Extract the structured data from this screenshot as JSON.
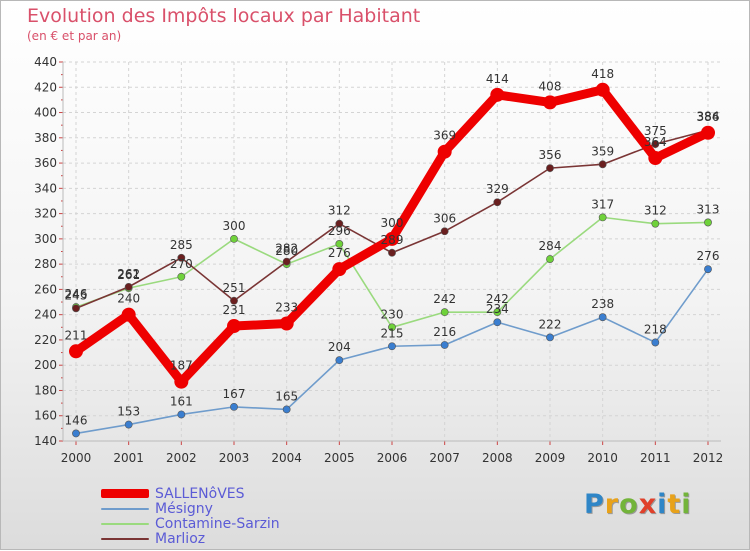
{
  "header": {
    "title": "Evolution des Impôts locaux par Habitant",
    "subtitle": "(en € et par an)"
  },
  "logo": {
    "text": "Proxiti",
    "letter_colors": [
      "#2f86c7",
      "#e8a21a",
      "#73b43a",
      "#e0402a",
      "#2f86c7",
      "#e8a21a",
      "#73b43a"
    ]
  },
  "chart_data": {
    "type": "line",
    "x": [
      "2000",
      "2001",
      "2002",
      "2003",
      "2004",
      "2005",
      "2006",
      "2007",
      "2008",
      "2009",
      "2010",
      "2011",
      "2012"
    ],
    "ylim": [
      140,
      440
    ],
    "yticks": [
      140,
      160,
      180,
      200,
      220,
      240,
      260,
      280,
      300,
      320,
      340,
      360,
      380,
      400,
      420,
      440
    ],
    "grid": true,
    "legend_position": "bottom-left",
    "series": [
      {
        "name": "SALLENôVES",
        "color": "#ee0000",
        "marker_color": "#ee0000",
        "emphasis": "thick",
        "values": [
          211,
          240,
          187,
          231,
          233,
          276,
          300,
          369,
          414,
          408,
          418,
          364,
          384
        ]
      },
      {
        "name": "Mésigny",
        "color": "#6f9ccc",
        "marker_color": "#3a7ed0",
        "emphasis": "thin",
        "values": [
          146,
          153,
          161,
          167,
          165,
          204,
          215,
          216,
          234,
          222,
          238,
          218,
          276
        ]
      },
      {
        "name": "Contamine-Sarzin",
        "color": "#9ada7e",
        "marker_color": "#6fd23a",
        "emphasis": "thin",
        "values": [
          246,
          261,
          270,
          300,
          280,
          296,
          230,
          242,
          242,
          284,
          317,
          312,
          313
        ]
      },
      {
        "name": "Marlioz",
        "color": "#7a3535",
        "marker_color": "#6a1f1f",
        "emphasis": "thin",
        "values": [
          245,
          262,
          285,
          251,
          282,
          312,
          289,
          306,
          329,
          356,
          359,
          375,
          386
        ]
      }
    ]
  }
}
